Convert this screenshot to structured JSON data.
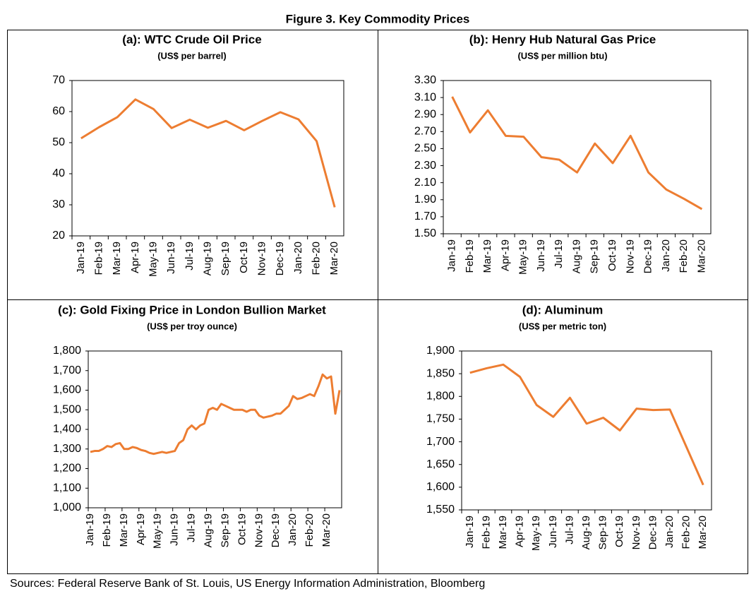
{
  "title": "Figure 3. Key Commodity Prices",
  "source": "Sources: Federal Reserve Bank of St. Louis, US Energy Information Administration, Bloomberg",
  "chart_data": [
    {
      "type": "line",
      "title": "(a): WTC Crude Oil Price",
      "subtitle": "(US$ per barrel)",
      "categories": [
        "Jan-19",
        "Feb-19",
        "Mar-19",
        "Apr-19",
        "May-19",
        "Jun-19",
        "Jul-19",
        "Aug-19",
        "Sep-19",
        "Oct-19",
        "Nov-19",
        "Dec-19",
        "Jan-20",
        "Feb-20",
        "Mar-20"
      ],
      "values": [
        51.4,
        55.0,
        58.2,
        63.9,
        60.8,
        54.7,
        57.4,
        54.8,
        57.0,
        54.0,
        57.0,
        59.8,
        57.5,
        50.5,
        29.2
      ],
      "color": "#ed7d31",
      "ylim": [
        20,
        70
      ],
      "yticks": [
        20,
        30,
        40,
        50,
        60,
        70
      ]
    },
    {
      "type": "line",
      "title": "(b): Henry Hub Natural Gas Price",
      "subtitle": "(US$ per million btu)",
      "categories": [
        "Jan-19",
        "Feb-19",
        "Mar-19",
        "Apr-19",
        "May-19",
        "Jun-19",
        "Jul-19",
        "Aug-19",
        "Sep-19",
        "Oct-19",
        "Nov-19",
        "Dec-19",
        "Jan-20",
        "Feb-20",
        "Mar-20"
      ],
      "values": [
        3.11,
        2.69,
        2.95,
        2.65,
        2.64,
        2.4,
        2.37,
        2.22,
        2.56,
        2.33,
        2.65,
        2.22,
        2.02,
        1.91,
        1.79
      ],
      "color": "#ed7d31",
      "ylim": [
        1.5,
        3.3
      ],
      "yticks": [
        {
          "value": 1.5,
          "label": "1.50"
        },
        {
          "value": 1.7,
          "label": "1.70"
        },
        {
          "value": 1.9,
          "label": "1.90"
        },
        {
          "value": 2.1,
          "label": "2.10"
        },
        {
          "value": 2.3,
          "label": "2.30"
        },
        {
          "value": 2.5,
          "label": "2.50"
        },
        {
          "value": 2.7,
          "label": "2.70"
        },
        {
          "value": 2.9,
          "label": "2.90"
        },
        {
          "value": 3.1,
          "label": "3.10"
        },
        {
          "value": 3.3,
          "label": "3.30"
        }
      ]
    },
    {
      "type": "line",
      "title": "(c): Gold Fixing Price in London Bullion Market",
      "subtitle": "(US$ per troy ounce)",
      "categories": [
        "Jan-19",
        null,
        null,
        null,
        "Feb-19",
        null,
        null,
        null,
        "Mar-19",
        null,
        null,
        null,
        "Apr-19",
        null,
        null,
        null,
        "May-19",
        null,
        null,
        null,
        "Jun-19",
        null,
        null,
        null,
        "Jul-19",
        null,
        null,
        null,
        "Aug-19",
        null,
        null,
        null,
        "Sep-19",
        null,
        null,
        null,
        "Oct-19",
        null,
        null,
        null,
        "Nov-19",
        null,
        null,
        null,
        "Dec-19",
        null,
        null,
        null,
        "Jan-20",
        null,
        null,
        null,
        "Feb-20",
        null,
        null,
        null,
        "Mar-20",
        null,
        null,
        null
      ],
      "values": [
        1285,
        1290,
        1290,
        1300,
        1315,
        1310,
        1325,
        1330,
        1300,
        1300,
        1310,
        1305,
        1295,
        1290,
        1280,
        1275,
        1280,
        1285,
        1280,
        1285,
        1290,
        1330,
        1345,
        1400,
        1420,
        1400,
        1420,
        1430,
        1500,
        1510,
        1500,
        1530,
        1520,
        1510,
        1500,
        1500,
        1500,
        1490,
        1500,
        1500,
        1470,
        1460,
        1465,
        1470,
        1480,
        1480,
        1500,
        1520,
        1570,
        1555,
        1560,
        1570,
        1580,
        1570,
        1620,
        1680,
        1660,
        1670,
        1480,
        1600
      ],
      "color": "#ed7d31",
      "ylim": [
        1000,
        1800
      ],
      "yticks": [
        {
          "value": 1000,
          "label": "1,000"
        },
        {
          "value": 1100,
          "label": "1,100"
        },
        {
          "value": 1200,
          "label": "1,200"
        },
        {
          "value": 1300,
          "label": "1,300"
        },
        {
          "value": 1400,
          "label": "1,400"
        },
        {
          "value": 1500,
          "label": "1,500"
        },
        {
          "value": 1600,
          "label": "1,600"
        },
        {
          "value": 1700,
          "label": "1,700"
        },
        {
          "value": 1800,
          "label": "1,800"
        }
      ]
    },
    {
      "type": "line",
      "title": "(d): Aluminum",
      "subtitle": "(US$ per metric ton)",
      "categories": [
        "Jan-19",
        "Feb-19",
        "Mar-19",
        "Apr-19",
        "May-19",
        "Jun-19",
        "Jul-19",
        "Aug-19",
        "Sep-19",
        "Oct-19",
        "Nov-19",
        "Dec-19",
        "Jan-20",
        "Feb-20",
        "Mar-20"
      ],
      "values": [
        1852,
        1862,
        1870,
        1843,
        1781,
        1755,
        1797,
        1740,
        1753,
        1725,
        1773,
        1770,
        1771,
        1688,
        1605
      ],
      "color": "#ed7d31",
      "ylim": [
        1550,
        1900
      ],
      "yticks": [
        {
          "value": 1550,
          "label": "1,550"
        },
        {
          "value": 1600,
          "label": "1,600"
        },
        {
          "value": 1650,
          "label": "1,650"
        },
        {
          "value": 1700,
          "label": "1,700"
        },
        {
          "value": 1750,
          "label": "1,750"
        },
        {
          "value": 1800,
          "label": "1,800"
        },
        {
          "value": 1850,
          "label": "1,850"
        },
        {
          "value": 1900,
          "label": "1,900"
        }
      ]
    }
  ]
}
